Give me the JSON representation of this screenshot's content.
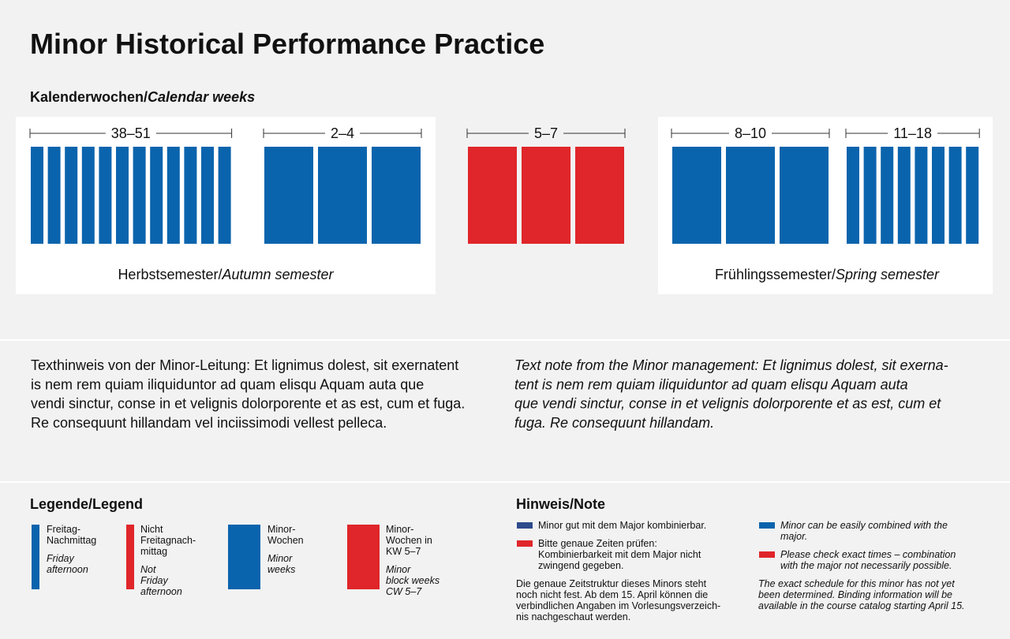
{
  "title": "Minor Historical Performance Practice",
  "calendar": {
    "heading": {
      "de": "Kalenderwochen/",
      "en": "Calendar weeks"
    },
    "ranges": [
      "38–51",
      "2–4",
      "5–7",
      "8–10",
      "11–18"
    ]
  },
  "semesters": [
    {
      "de": "Herbstsemester/",
      "en": "Autumn semester"
    },
    {
      "de": "Frühlingssemester/",
      "en": "Spring semester"
    }
  ],
  "text_note": {
    "de": [
      "Texthinweis von der Minor-Leitung: Et lignimus dolest, sit exernatent",
      "is nem rem quiam iliquiduntor ad quam elisqu Aquam auta que",
      "vendi sinctur, conse in et velignis dolorporente et as est, cum et fuga.",
      "Re consequunt hillandam vel inciissimodi vellest pelleca."
    ],
    "en": [
      "Text note from the Minor management: Et lignimus dolest, sit exerna-",
      "tent is nem rem quiam iliquiduntor ad quam elisqu Aquam auta",
      "que vendi sinctur, conse in et velignis dolorporente et as est, cum et",
      "fuga. Re consequunt hillandam."
    ]
  },
  "legend": {
    "title": "Legende/Legend",
    "items": [
      {
        "de": [
          "Freitag-",
          "Nachmittag"
        ],
        "en": [
          "Friday",
          "afternoon"
        ]
      },
      {
        "de": [
          "Nicht",
          "Freitagnach-",
          "mittag"
        ],
        "en": [
          "Not",
          "Friday",
          "afternoon"
        ]
      },
      {
        "de": [
          "Minor-",
          "Wochen"
        ],
        "en": [
          "Minor",
          "weeks"
        ]
      },
      {
        "de": [
          "Minor-",
          "Wochen in",
          "KW 5–7"
        ],
        "en": [
          "Minor",
          "block weeks",
          "CW 5–7"
        ]
      }
    ]
  },
  "note": {
    "title": "Hinweis/Note",
    "items": [
      {
        "de": [
          "Minor gut mit dem Major kombinierbar."
        ],
        "en": [
          "Minor can be easily combined with the",
          "major."
        ]
      },
      {
        "de": [
          "Bitte genaue Zeiten prüfen:",
          "Kombinierbarkeit mit dem Major nicht",
          "zwingend gegeben."
        ],
        "en": [
          "Please check exact times – combination",
          "with the major not necessarily possible."
        ]
      }
    ],
    "detail": {
      "de": [
        "Die genaue Zeitstruktur dieses Minors steht",
        "noch nicht fest. Ab dem 15. April können die",
        "verbindlichen Angaben im Vorlesungsverzeich-",
        "nis nachgeschaut werden."
      ],
      "en": [
        "The exact schedule for this minor has not yet",
        "been determined. Binding information will be",
        "available in the course catalog starting April 15."
      ]
    }
  }
}
